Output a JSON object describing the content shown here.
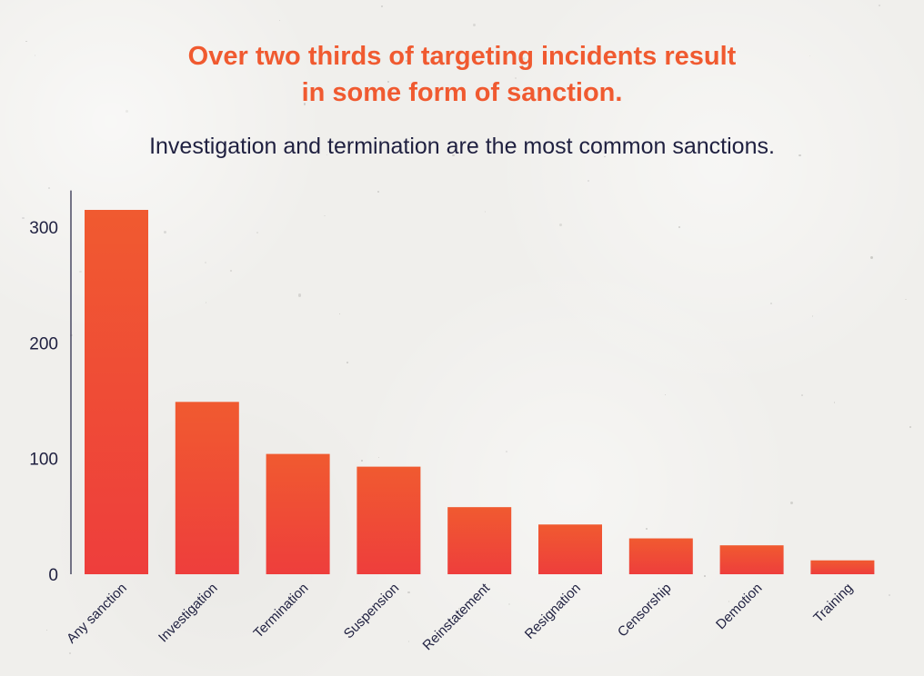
{
  "title_lines": [
    "Over two thirds of targeting incidents result",
    "in some form of sanction."
  ],
  "subtitle": "Investigation and termination are the most common sanctions.",
  "colors": {
    "bar_top": "#f05a30",
    "bar_bottom": "#ee3e3c",
    "title": "#f05a30",
    "text": "#1f2040",
    "axis": "#1f2040"
  },
  "chart_data": {
    "type": "bar",
    "categories": [
      "Any sanction",
      "Investigation",
      "Termination",
      "Suspension",
      "Reinstatement",
      "Resignation",
      "Censorship",
      "Demotion",
      "Training"
    ],
    "values": [
      315,
      149,
      104,
      93,
      58,
      43,
      31,
      25,
      12
    ],
    "yticks": [
      0,
      100,
      200,
      300
    ],
    "ylim": [
      0,
      320
    ],
    "xlabel": "",
    "ylabel": "",
    "grid": false,
    "legend": "none"
  }
}
